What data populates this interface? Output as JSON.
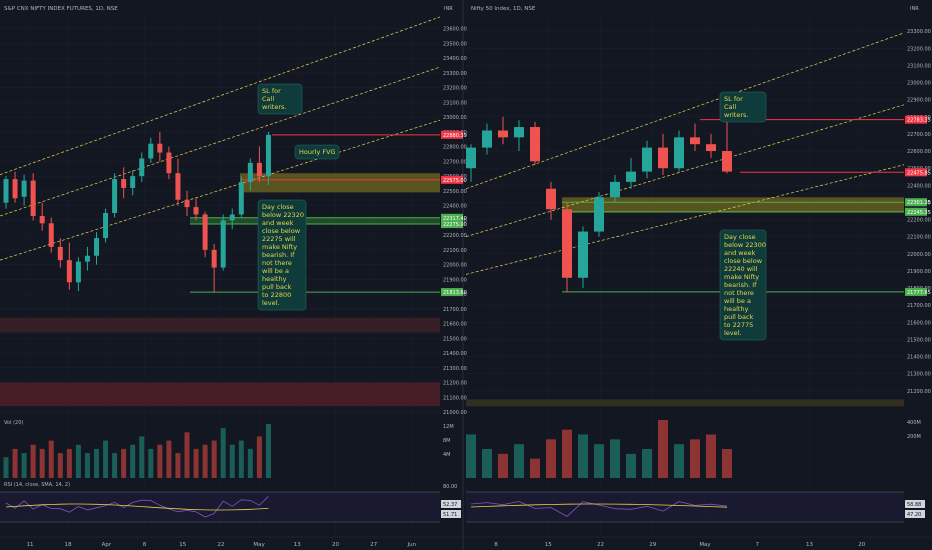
{
  "colors": {
    "background": "#131722",
    "grid": "#1e2230",
    "up_candle": "#26a69a",
    "down_candle": "#ef5350",
    "up_candle_muted": "#1b5e57",
    "down_candle_muted": "#8c3434",
    "green_line": "#4caf50",
    "red_line": "#f23645",
    "channel": "#e8d44d",
    "fvg_zone": "#6b6320",
    "green_zone": "#2e7d32",
    "callout_bg": "#0f3b3a",
    "callout_text": "#e8d44d",
    "rsi_line": "#7e57c2",
    "rsi_ma": "#e8d44d",
    "text": "#b2b5be"
  },
  "chart_data": [
    {
      "type": "candlestick",
      "title": "S&P CNX NIFTY INDEX FUTURES, 1D, NSE",
      "currency": "INR",
      "ylim": [
        21000,
        23700
      ],
      "y_ticks": [
        23600,
        23500,
        23400,
        23300,
        23200,
        23100,
        23000,
        22900,
        22800,
        22700,
        22600,
        22500,
        22400,
        22300,
        22200,
        22100,
        22000,
        21900,
        21800,
        21700,
        21600,
        21500,
        21400,
        21300,
        21200,
        21100,
        21000
      ],
      "x_tick_labels": [
        "11",
        "18",
        "Apr",
        "8",
        "15",
        "22",
        "May",
        "13",
        "20",
        "27",
        "Jun"
      ],
      "price_labels": [
        {
          "value": 22880.39,
          "text": "22880.39",
          "color": "red"
        },
        {
          "value": 22575.0,
          "text": "22575.00",
          "color": "red"
        },
        {
          "value": 22317.4,
          "text": "22317.40",
          "color": "green"
        },
        {
          "value": 22275.0,
          "text": "22275.00",
          "color": "green"
        },
        {
          "value": 21813.6,
          "text": "21813.60",
          "color": "green"
        }
      ],
      "candles": [
        {
          "o": 22420,
          "h": 22600,
          "l": 22380,
          "c": 22580
        },
        {
          "o": 22580,
          "h": 22630,
          "l": 22420,
          "c": 22450
        },
        {
          "o": 22460,
          "h": 22610,
          "l": 22400,
          "c": 22570
        },
        {
          "o": 22570,
          "h": 22620,
          "l": 22300,
          "c": 22330
        },
        {
          "o": 22330,
          "h": 22420,
          "l": 22230,
          "c": 22280
        },
        {
          "o": 22280,
          "h": 22320,
          "l": 22080,
          "c": 22120
        },
        {
          "o": 22120,
          "h": 22180,
          "l": 21980,
          "c": 22030
        },
        {
          "o": 22030,
          "h": 22150,
          "l": 21830,
          "c": 21880
        },
        {
          "o": 21880,
          "h": 22050,
          "l": 21820,
          "c": 22020
        },
        {
          "o": 22020,
          "h": 22120,
          "l": 21960,
          "c": 22060
        },
        {
          "o": 22060,
          "h": 22220,
          "l": 22000,
          "c": 22180
        },
        {
          "o": 22180,
          "h": 22380,
          "l": 22150,
          "c": 22350
        },
        {
          "o": 22350,
          "h": 22620,
          "l": 22320,
          "c": 22580
        },
        {
          "o": 22580,
          "h": 22660,
          "l": 22450,
          "c": 22520
        },
        {
          "o": 22520,
          "h": 22640,
          "l": 22470,
          "c": 22600
        },
        {
          "o": 22600,
          "h": 22760,
          "l": 22560,
          "c": 22720
        },
        {
          "o": 22720,
          "h": 22860,
          "l": 22690,
          "c": 22820
        },
        {
          "o": 22820,
          "h": 22900,
          "l": 22700,
          "c": 22760
        },
        {
          "o": 22760,
          "h": 22800,
          "l": 22580,
          "c": 22620
        },
        {
          "o": 22620,
          "h": 22720,
          "l": 22400,
          "c": 22440
        },
        {
          "o": 22440,
          "h": 22500,
          "l": 22330,
          "c": 22390
        },
        {
          "o": 22390,
          "h": 22450,
          "l": 22300,
          "c": 22340
        },
        {
          "o": 22340,
          "h": 22360,
          "l": 22050,
          "c": 22100
        },
        {
          "o": 22100,
          "h": 22140,
          "l": 21810,
          "c": 21980
        },
        {
          "o": 21980,
          "h": 22340,
          "l": 21960,
          "c": 22300
        },
        {
          "o": 22300,
          "h": 22380,
          "l": 22240,
          "c": 22340
        },
        {
          "o": 22340,
          "h": 22600,
          "l": 22320,
          "c": 22560
        },
        {
          "o": 22560,
          "h": 22720,
          "l": 22500,
          "c": 22690
        },
        {
          "o": 22690,
          "h": 22800,
          "l": 22560,
          "c": 22600
        },
        {
          "o": 22600,
          "h": 22900,
          "l": 22540,
          "c": 22880
        }
      ],
      "annotations": [
        "SL for Call writers.",
        "Hourly FVG",
        "Day close below 22320 and week close below 22275 will make Nifty bearish. If not there will be a healthy pull back to 22800 level."
      ],
      "volume": {
        "label": "Vol (20)",
        "ticks": [
          "12M",
          "8M",
          "4M"
        ],
        "values": [
          5,
          7,
          6,
          8,
          7,
          9,
          6,
          7,
          8,
          6,
          7,
          9,
          6,
          7,
          8,
          10,
          7,
          8,
          9,
          6,
          11,
          7,
          8,
          9,
          12,
          8,
          9,
          7,
          10,
          13
        ]
      },
      "rsi": {
        "label": "RSI (14, close, SMA, 14, 2)",
        "ticks": [
          "80.00"
        ],
        "value_labels": [
          "52.37",
          "51.71"
        ]
      }
    },
    {
      "type": "candlestick",
      "title": "Nifty 50 Index, 1D, NSE",
      "currency": "INR",
      "ylim": [
        21100,
        23400
      ],
      "y_ticks": [
        23300,
        23200,
        23100,
        23000,
        22900,
        22800,
        22700,
        22600,
        22500,
        22400,
        22300,
        22200,
        22100,
        22000,
        21900,
        21800,
        21700,
        21600,
        21500,
        21400,
        21300,
        21200
      ],
      "x_tick_labels": [
        "8",
        "15",
        "22",
        "29",
        "May",
        "7",
        "13",
        "20"
      ],
      "price_labels": [
        {
          "value": 22783.35,
          "text": "22783.35",
          "color": "red"
        },
        {
          "value": 22475.85,
          "text": "22475.85",
          "color": "red"
        },
        {
          "value": 22301.25,
          "text": "22301.25",
          "color": "green"
        },
        {
          "value": 22245.35,
          "text": "22245.35",
          "color": "green"
        },
        {
          "value": 21777.65,
          "text": "21777.65",
          "color": "green"
        }
      ],
      "candles": [
        {
          "o": 22500,
          "h": 22640,
          "l": 22420,
          "c": 22620
        },
        {
          "o": 22620,
          "h": 22760,
          "l": 22580,
          "c": 22720
        },
        {
          "o": 22720,
          "h": 22800,
          "l": 22640,
          "c": 22680
        },
        {
          "o": 22680,
          "h": 22780,
          "l": 22600,
          "c": 22740
        },
        {
          "o": 22740,
          "h": 22770,
          "l": 22520,
          "c": 22540
        },
        {
          "o": 22380,
          "h": 22420,
          "l": 22200,
          "c": 22260
        },
        {
          "o": 22260,
          "h": 22300,
          "l": 21780,
          "c": 21860
        },
        {
          "o": 21860,
          "h": 22160,
          "l": 21800,
          "c": 22130
        },
        {
          "o": 22130,
          "h": 22360,
          "l": 22100,
          "c": 22330
        },
        {
          "o": 22330,
          "h": 22460,
          "l": 22300,
          "c": 22420
        },
        {
          "o": 22420,
          "h": 22560,
          "l": 22380,
          "c": 22480
        },
        {
          "o": 22480,
          "h": 22660,
          "l": 22440,
          "c": 22620
        },
        {
          "o": 22620,
          "h": 22700,
          "l": 22460,
          "c": 22500
        },
        {
          "o": 22500,
          "h": 22720,
          "l": 22480,
          "c": 22680
        },
        {
          "o": 22680,
          "h": 22760,
          "l": 22600,
          "c": 22640
        },
        {
          "o": 22640,
          "h": 22700,
          "l": 22560,
          "c": 22600
        },
        {
          "o": 22600,
          "h": 22800,
          "l": 22470,
          "c": 22480
        }
      ],
      "annotations": [
        "SL for Call writers.",
        "Day close below 22300 and week close below 22240 will make Nifty bearish. If not there will be a healthy pull back to 22775 level."
      ],
      "volume": {
        "ticks": [
          "400M",
          "200M"
        ],
        "values": [
          9,
          6,
          5,
          7,
          4,
          8,
          10,
          9,
          7,
          8,
          5,
          6,
          12,
          7,
          8,
          9,
          6
        ]
      },
      "rsi": {
        "value_labels": [
          "58.88",
          "47.20"
        ]
      }
    }
  ]
}
